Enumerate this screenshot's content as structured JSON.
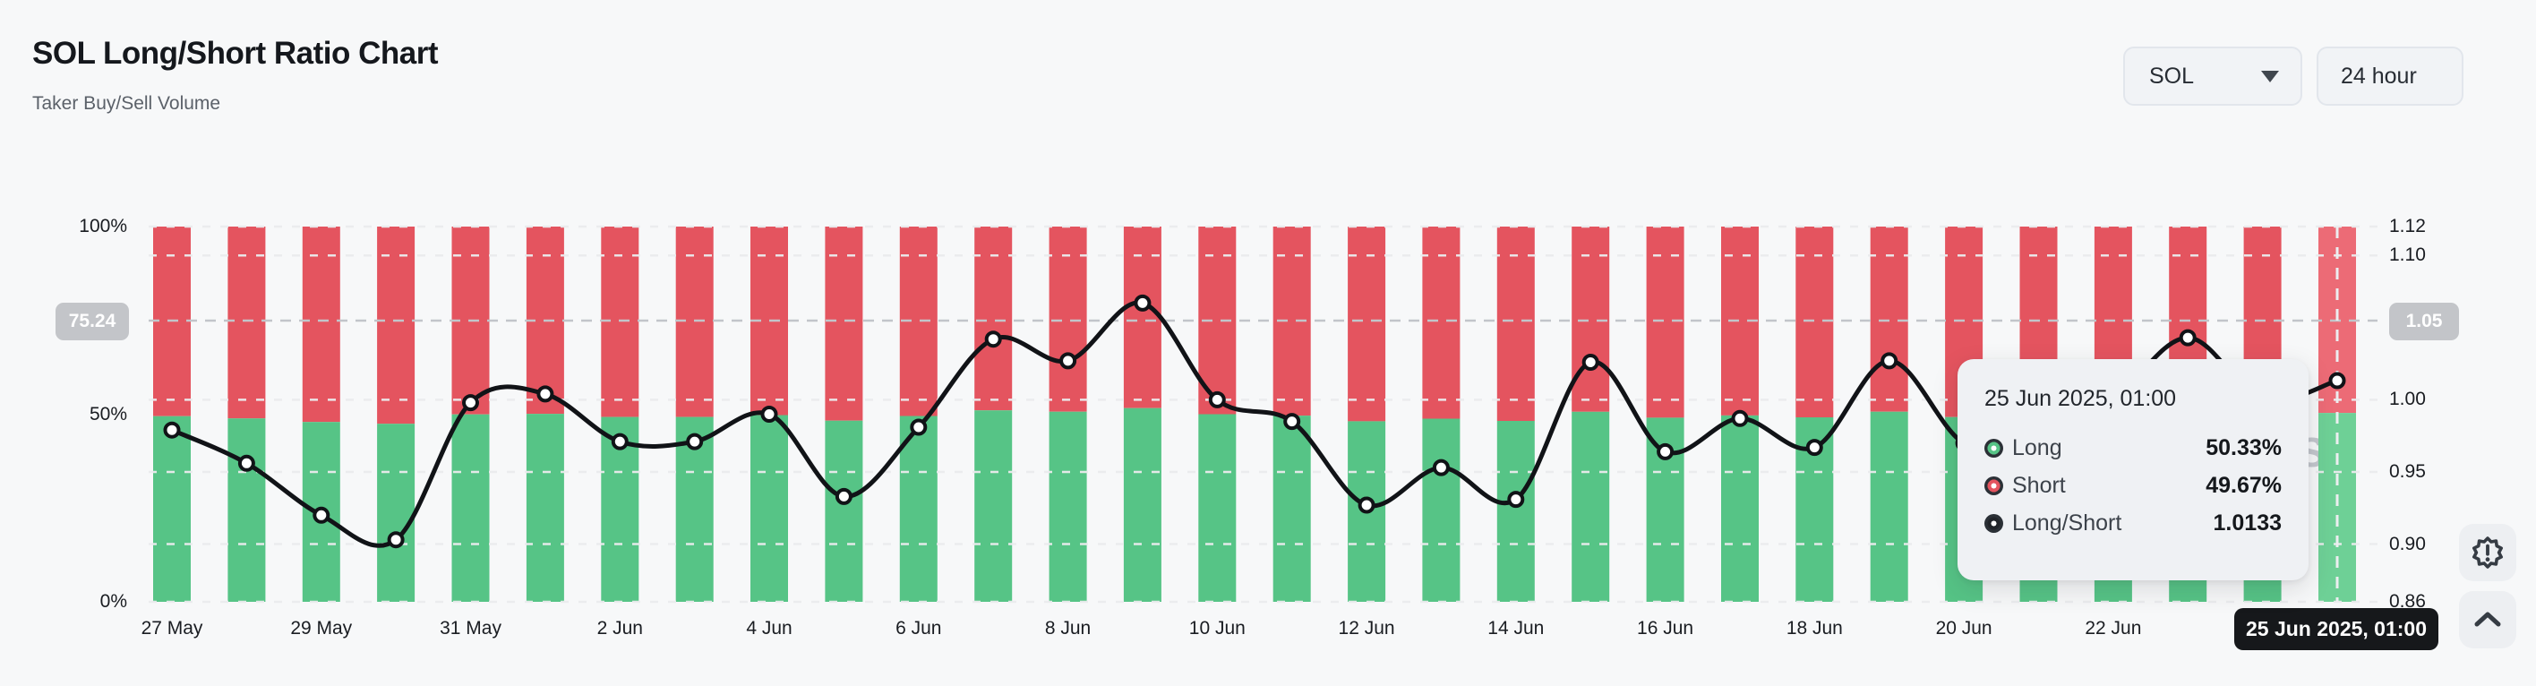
{
  "header": {
    "title": "SOL Long/Short Ratio Chart",
    "subtitle": "Taker Buy/Sell Volume"
  },
  "controls": {
    "symbol_select": {
      "value": "SOL"
    },
    "interval_select": {
      "value": "24 hour"
    }
  },
  "chart_data": {
    "type": "bar+line",
    "title": "SOL Long/Short Ratio Chart",
    "categories": [
      "27 May",
      "28 May",
      "29 May",
      "30 May",
      "31 May",
      "1 Jun",
      "2 Jun",
      "3 Jun",
      "4 Jun",
      "5 Jun",
      "6 Jun",
      "7 Jun",
      "8 Jun",
      "9 Jun",
      "10 Jun",
      "11 Jun",
      "12 Jun",
      "13 Jun",
      "14 Jun",
      "15 Jun",
      "16 Jun",
      "17 Jun",
      "18 Jun",
      "19 Jun",
      "20 Jun",
      "21 Jun",
      "22 Jun",
      "23 Jun",
      "24 Jun",
      "25 Jun"
    ],
    "x_tick_labels": [
      "27 May",
      "29 May",
      "31 May",
      "2 Jun",
      "4 Jun",
      "6 Jun",
      "8 Jun",
      "10 Jun",
      "12 Jun",
      "14 Jun",
      "16 Jun",
      "18 Jun",
      "20 Jun",
      "22 Jun",
      "24 Jun"
    ],
    "series": [
      {
        "name": "Long",
        "type": "bar-stack-bottom",
        "unit": "%",
        "color": "#56c486",
        "values": [
          49.47,
          48.88,
          47.92,
          47.45,
          49.95,
          50.1,
          49.26,
          49.26,
          49.75,
          48.27,
          49.52,
          51.03,
          50.67,
          51.62,
          50.0,
          49.62,
          48.11,
          48.8,
          48.21,
          50.64,
          49.08,
          49.67,
          49.16,
          50.67,
          49.24,
          49.24,
          50.0,
          51.05,
          50.0,
          50.33
        ]
      },
      {
        "name": "Short",
        "type": "bar-stack-top",
        "unit": "%",
        "color": "#e4545f",
        "values": [
          50.53,
          51.12,
          52.08,
          52.55,
          50.05,
          49.9,
          50.74,
          50.74,
          50.25,
          51.73,
          50.48,
          48.97,
          49.33,
          48.38,
          50.0,
          50.38,
          51.89,
          51.2,
          51.79,
          49.36,
          50.92,
          50.33,
          50.84,
          49.33,
          50.76,
          50.76,
          50.0,
          48.95,
          50.0,
          49.67
        ]
      },
      {
        "name": "Long/Short",
        "type": "line",
        "axis": "right",
        "color": "#111317",
        "values": [
          0.979,
          0.956,
          0.92,
          0.903,
          0.998,
          1.004,
          0.971,
          0.971,
          0.99,
          0.933,
          0.981,
          1.042,
          1.027,
          1.067,
          1.0,
          0.985,
          0.927,
          0.953,
          0.931,
          1.026,
          0.964,
          0.987,
          0.967,
          1.027,
          0.97,
          0.97,
          1.0,
          1.043,
          1.0,
          1.0133
        ]
      }
    ],
    "left_axis": {
      "ticks": [
        "100%",
        "50%",
        "0%"
      ],
      "tick_values": [
        100,
        50,
        0
      ],
      "range": [
        0,
        100
      ]
    },
    "right_axis": {
      "ticks": [
        "1.12",
        "1.10",
        "1.00",
        "0.95",
        "0.90",
        "0.86"
      ],
      "tick_values": [
        1.12,
        1.1,
        1.0,
        0.95,
        0.9,
        0.86
      ],
      "gridline_values": [
        1.12,
        1.1,
        1.0,
        0.95,
        0.9,
        0.86
      ],
      "range": [
        0.86,
        1.12
      ]
    },
    "legend_position": "tooltip-only",
    "grid": "dashed-horizontal",
    "hovered_index": 29
  },
  "crosshair": {
    "left_badge": "75.24",
    "right_badge": "1.05",
    "value_right": 1.05,
    "date_label": "25 Jun 2025, 01:00"
  },
  "tooltip": {
    "title": "25 Jun 2025, 01:00",
    "rows": [
      {
        "label": "Long",
        "value": "50.33%",
        "color": "#56c486"
      },
      {
        "label": "Short",
        "value": "49.67%",
        "color": "#e4545f"
      },
      {
        "label": "Long/Short",
        "value": "1.0133",
        "color": "#212429"
      }
    ]
  },
  "watermark": "S",
  "colors": {
    "background": "#f7f8f9",
    "long": "#56c486",
    "long_highlight": "#6ed096",
    "short": "#e4545f",
    "short_highlight": "#ec6b76",
    "line": "#111317",
    "grid": "#ebecee",
    "crosshair": "#c2c5ca",
    "badge": "#c3c5c9",
    "pill": "#16181b"
  }
}
